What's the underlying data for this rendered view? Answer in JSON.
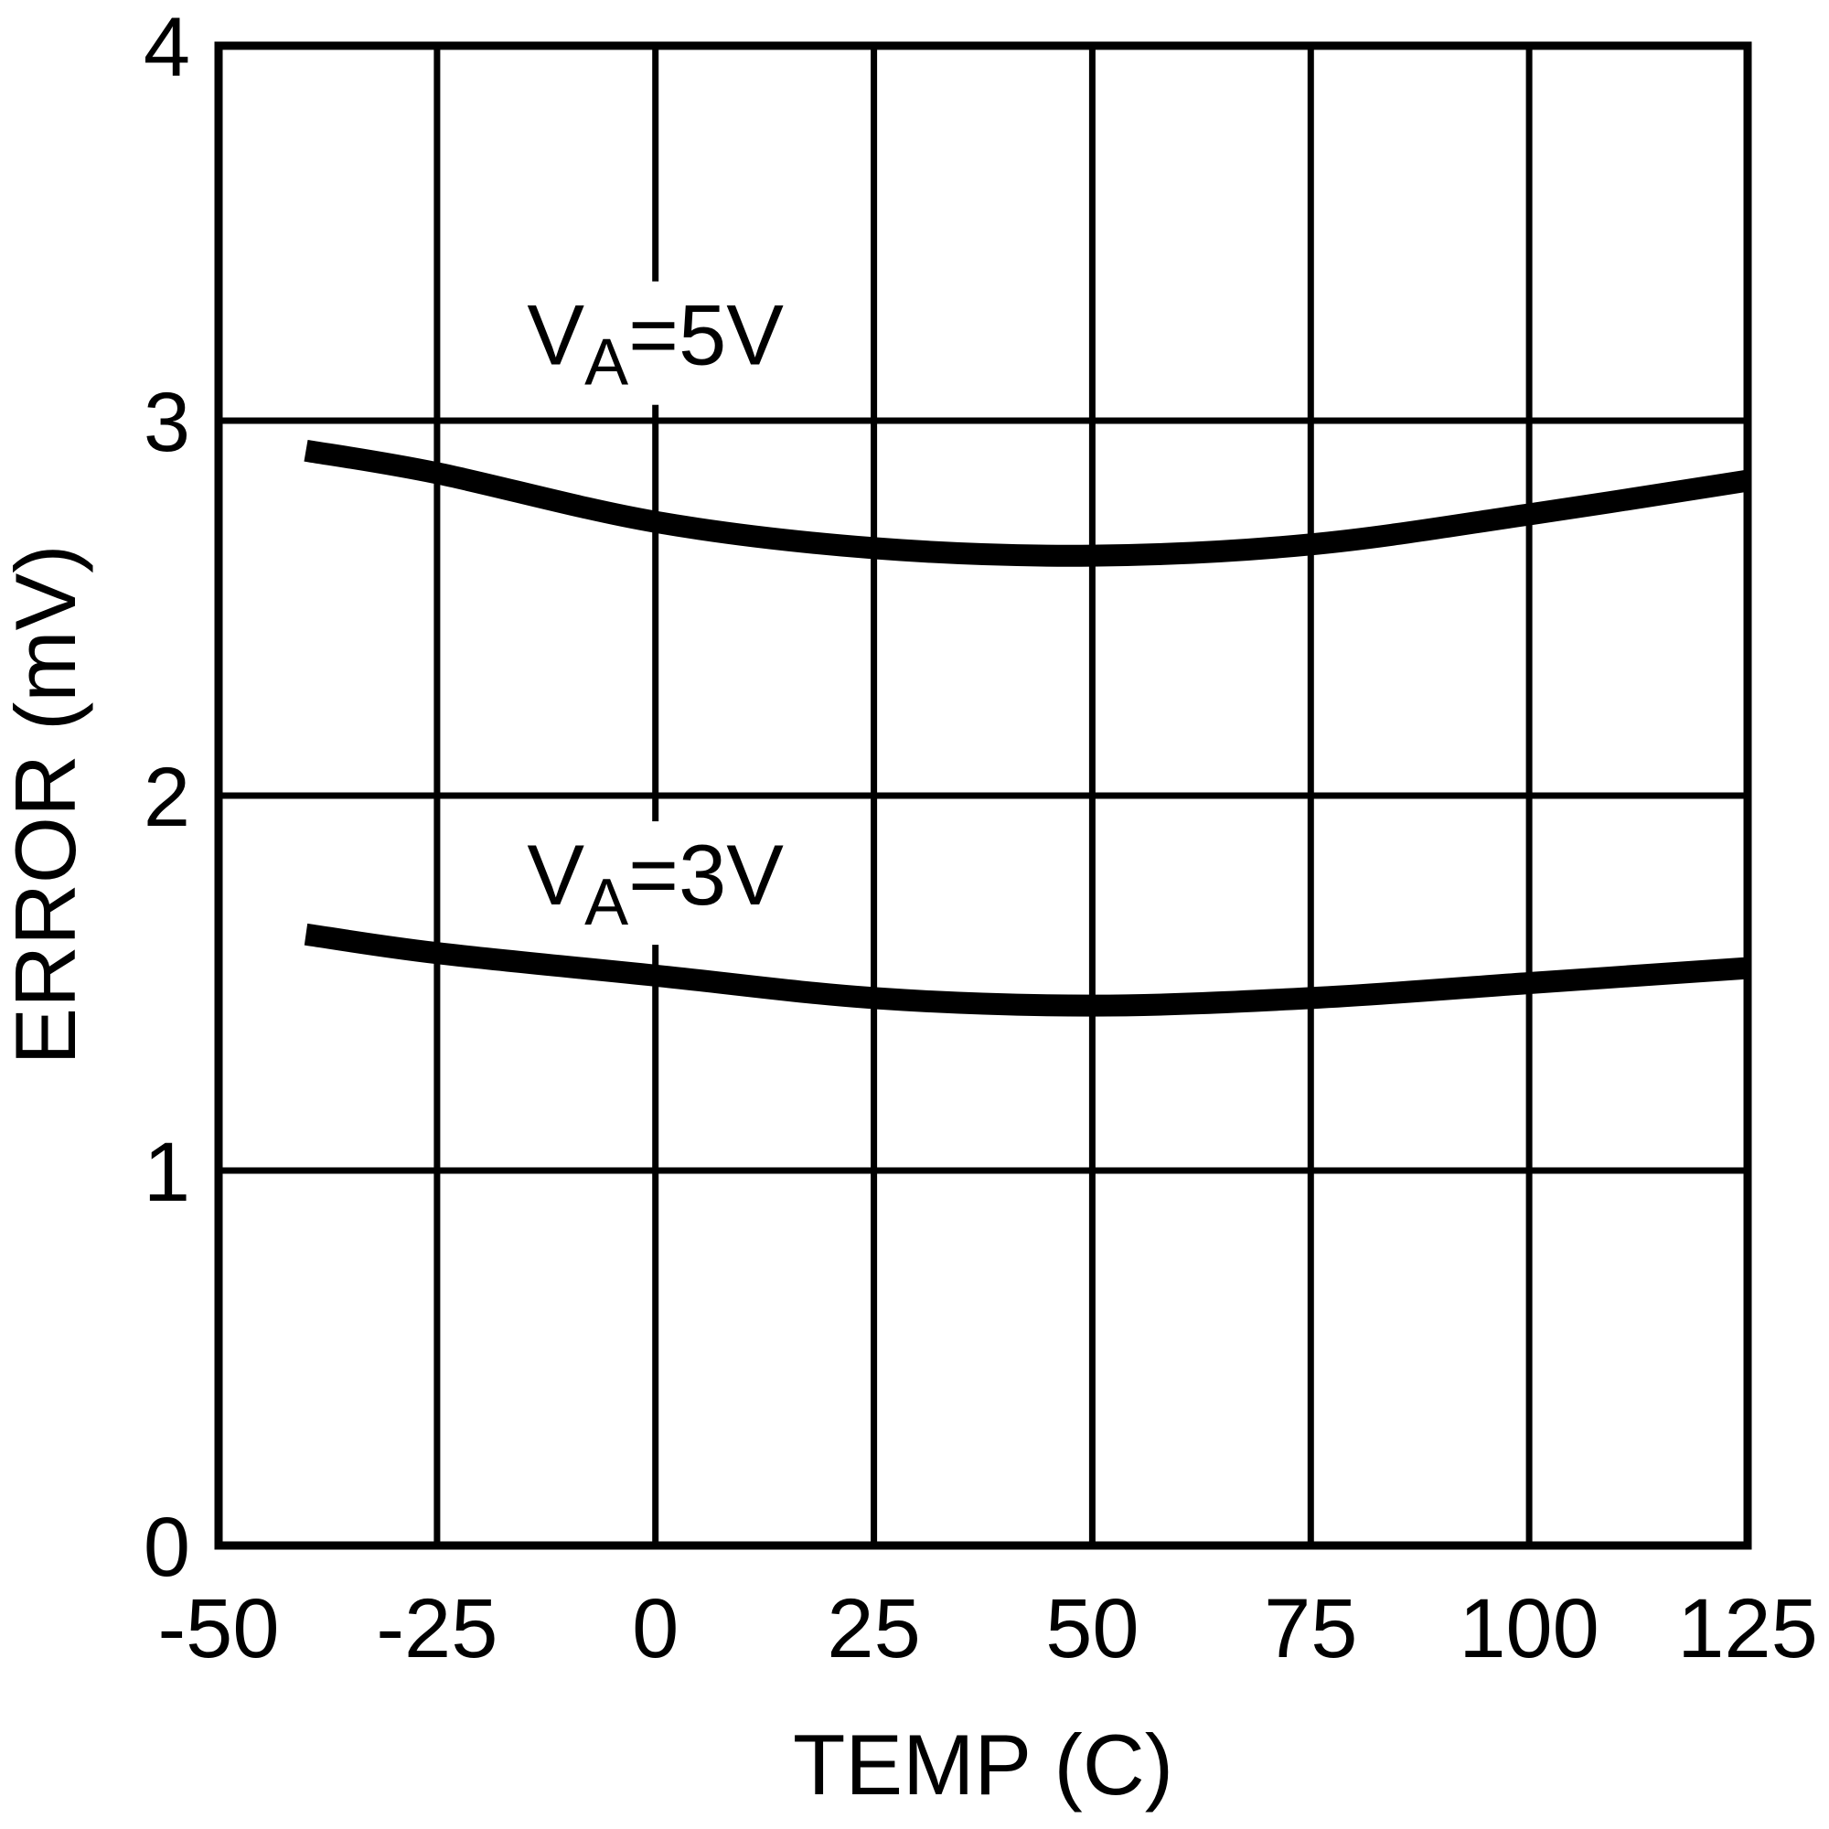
{
  "colors": {
    "ink": "#000000",
    "background": "#ffffff"
  },
  "chart_data": {
    "type": "line",
    "title": "",
    "xlabel": "TEMP (C)",
    "ylabel": "ERROR (mV)",
    "xlim": [
      -50,
      125
    ],
    "ylim": [
      0,
      4
    ],
    "xticks": [
      -50,
      -25,
      0,
      25,
      50,
      75,
      100,
      125
    ],
    "yticks": [
      0,
      1,
      2,
      3,
      4
    ],
    "grid": true,
    "legend_position": "inline-curve-labels",
    "series": [
      {
        "name": "VA=5V",
        "label_prefix": "V",
        "label_sub": "A",
        "label_suffix": "=5V",
        "label_at": {
          "x": 0,
          "y": 3.23
        },
        "x": [
          -40,
          -25,
          0,
          25,
          50,
          75,
          100,
          125
        ],
        "y": [
          2.92,
          2.86,
          2.73,
          2.66,
          2.64,
          2.67,
          2.75,
          2.84
        ]
      },
      {
        "name": "VA=3V",
        "label_prefix": "V",
        "label_sub": "A",
        "label_suffix": "=3V",
        "label_at": {
          "x": 0,
          "y": 1.79
        },
        "x": [
          -40,
          -25,
          0,
          25,
          50,
          75,
          100,
          125
        ],
        "y": [
          1.63,
          1.58,
          1.52,
          1.46,
          1.44,
          1.46,
          1.5,
          1.54
        ]
      }
    ]
  }
}
